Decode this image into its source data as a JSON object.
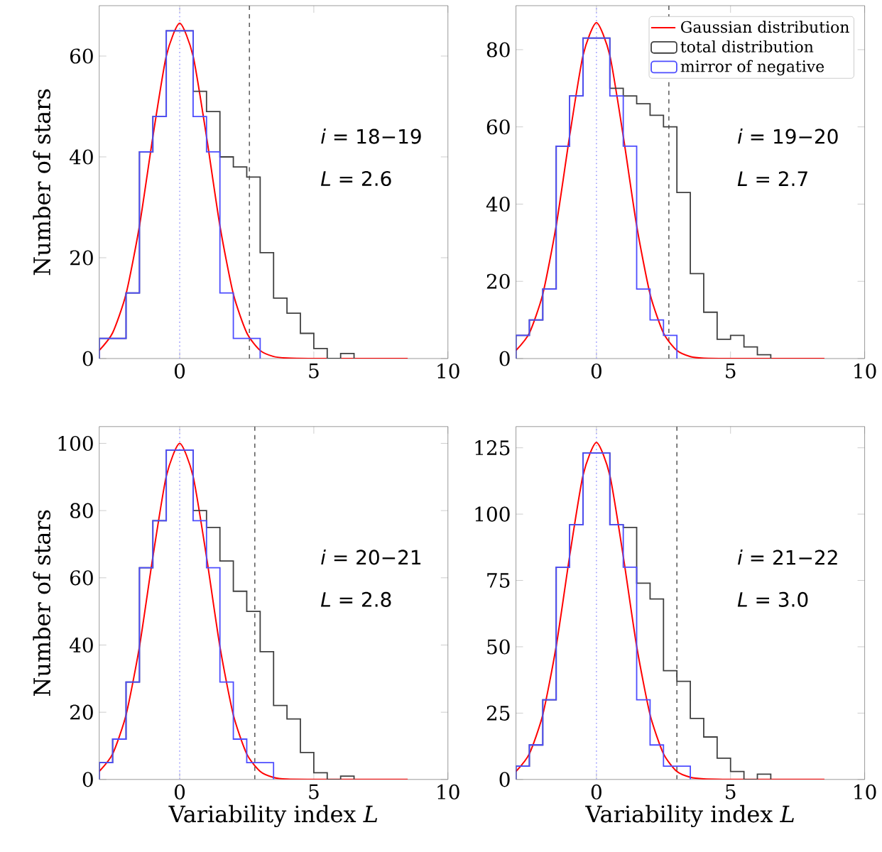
{
  "chart_data": [
    {
      "type": "histogram",
      "ylabel": "Number of stars",
      "xlim": [
        -3,
        10
      ],
      "xticks": [
        0,
        5,
        10
      ],
      "ylim": [
        0,
        70
      ],
      "yticks": [
        0,
        20,
        40,
        60
      ],
      "series": [
        {
          "type": "line",
          "color": "#ff0000",
          "x": [
            -3,
            -2.5,
            -2,
            -1.5,
            -1,
            -0.5,
            0,
            0.5,
            1,
            1.5,
            2,
            2.5,
            3,
            3.5,
            4,
            5,
            6,
            7,
            8,
            8.5
          ],
          "values": [
            1.6,
            5.1,
            12.8,
            26.3,
            44.0,
            60.0,
            66.5,
            60.0,
            44.0,
            26.3,
            12.8,
            5.1,
            1.6,
            0.4,
            0.1,
            0,
            0,
            0,
            0,
            0
          ]
        },
        {
          "color": "#404040",
          "bins": [
            -3,
            -2.5,
            -2,
            -1.5,
            -1,
            -0.5,
            0,
            0.5,
            1,
            1.5,
            2,
            2.5,
            3,
            3.5,
            4,
            4.5,
            5,
            5.5,
            6,
            6.5
          ],
          "values": [
            4,
            4,
            13,
            41,
            48,
            65,
            65,
            53,
            49,
            40,
            38,
            36,
            21,
            12,
            9,
            5,
            2,
            0,
            1
          ]
        },
        {
          "color": "#4d4dff",
          "bins": [
            -3,
            -2.5,
            -2,
            -1.5,
            -1,
            -0.5,
            0,
            0.5,
            1,
            1.5,
            2,
            2.5,
            3
          ],
          "values": [
            4,
            4,
            13,
            41,
            48,
            65,
            65,
            48,
            41,
            13,
            4,
            4
          ]
        }
      ],
      "ref_lines": [
        {
          "axis": "x",
          "value": 0,
          "color": "#9f9fff",
          "line_style": "dotted"
        },
        {
          "axis": "x",
          "value": 2.6,
          "color": "#606060",
          "line_style": "dashed"
        }
      ],
      "annotations": [
        "*i* = 18−19",
        "*L* = 2.6"
      ]
    },
    {
      "type": "histogram",
      "xlim": [
        -3,
        10
      ],
      "xticks": [
        0,
        5,
        10
      ],
      "ylim": [
        0,
        91.4
      ],
      "yticks": [
        0,
        20,
        40,
        60,
        80
      ],
      "legend": "top right",
      "series": [
        {
          "type": "line",
          "name": "Gaussian distribution",
          "color": "#ff0000",
          "x": [
            -3,
            -2.5,
            -2,
            -1.5,
            -1,
            -0.5,
            0,
            0.5,
            1,
            1.5,
            2,
            2.5,
            3,
            3.5,
            4,
            5,
            6,
            7,
            8,
            8.5
          ],
          "values": [
            2.1,
            6.6,
            16.7,
            34.4,
            57.6,
            78.5,
            87,
            78.5,
            57.6,
            34.4,
            16.7,
            6.6,
            2.1,
            0.5,
            0.1,
            0,
            0,
            0,
            0,
            0
          ]
        },
        {
          "name": "total distribution",
          "color": "#404040",
          "bins": [
            -3,
            -2.5,
            -2,
            -1.5,
            -1,
            -0.5,
            0,
            0.5,
            1,
            1.5,
            2,
            2.5,
            3,
            3.5,
            4,
            4.5,
            5,
            5.5,
            6,
            6.5
          ],
          "values": [
            6,
            10,
            18,
            55,
            68,
            83,
            83,
            70,
            68,
            66,
            63,
            60,
            43,
            22,
            12,
            5,
            6,
            3,
            1
          ]
        },
        {
          "name": "mirror of negative",
          "color": "#4d4dff",
          "bins": [
            -3,
            -2.5,
            -2,
            -1.5,
            -1,
            -0.5,
            0,
            0.5,
            1,
            1.5,
            2,
            2.5,
            3
          ],
          "values": [
            6,
            10,
            18,
            55,
            68,
            83,
            83,
            68,
            55,
            18,
            10,
            6
          ]
        }
      ],
      "ref_lines": [
        {
          "axis": "x",
          "value": 0,
          "color": "#9f9fff",
          "line_style": "dotted"
        },
        {
          "axis": "x",
          "value": 2.7,
          "color": "#606060",
          "line_style": "dashed"
        }
      ],
      "annotations": [
        "*i* = 19−20",
        "*L* = 2.7"
      ]
    },
    {
      "type": "histogram",
      "xlabel": "Variability index *L*",
      "ylabel": "Number of stars",
      "xlim": [
        -3,
        10
      ],
      "xticks": [
        0,
        5,
        10
      ],
      "ylim": [
        0,
        105
      ],
      "yticks": [
        0,
        20,
        40,
        60,
        80,
        100
      ],
      "series": [
        {
          "type": "line",
          "color": "#ff0000",
          "x": [
            -3,
            -2.5,
            -2,
            -1.5,
            -1,
            -0.5,
            0,
            0.5,
            1,
            1.5,
            2,
            2.5,
            3,
            3.5,
            4,
            5,
            6,
            7,
            8,
            8.5
          ],
          "values": [
            2.4,
            7.6,
            19.2,
            39.5,
            66.2,
            90.2,
            100,
            90.2,
            66.2,
            39.5,
            19.2,
            7.6,
            2.4,
            0.6,
            0.1,
            0,
            0,
            0,
            0,
            0
          ]
        },
        {
          "color": "#404040",
          "bins": [
            -3,
            -2.5,
            -2,
            -1.5,
            -1,
            -0.5,
            0,
            0.5,
            1,
            1.5,
            2,
            2.5,
            3,
            3.5,
            4,
            4.5,
            5,
            5.5,
            6,
            6.5
          ],
          "values": [
            5,
            12,
            29,
            63,
            77,
            98,
            98,
            80,
            75,
            65,
            56,
            50,
            38,
            22,
            18,
            8,
            2,
            0,
            1
          ]
        },
        {
          "color": "#4d4dff",
          "bins": [
            -3,
            -2.5,
            -2,
            -1.5,
            -1,
            -0.5,
            0,
            0.5,
            1,
            1.5,
            2,
            2.5,
            3,
            3.5
          ],
          "values": [
            5,
            12,
            29,
            63,
            77,
            98,
            98,
            77,
            63,
            29,
            12,
            5,
            5
          ]
        }
      ],
      "ref_lines": [
        {
          "axis": "x",
          "value": 0,
          "color": "#9f9fff",
          "line_style": "dotted"
        },
        {
          "axis": "x",
          "value": 2.8,
          "color": "#606060",
          "line_style": "dashed"
        }
      ],
      "annotations": [
        "*i* = 20−21",
        "*L* = 2.8"
      ]
    },
    {
      "type": "histogram",
      "xlabel": "Variability index *L*",
      "xlim": [
        -3,
        10
      ],
      "xticks": [
        0,
        5,
        10
      ],
      "ylim": [
        0,
        133
      ],
      "yticks": [
        0,
        25,
        50,
        75,
        100,
        125
      ],
      "series": [
        {
          "type": "line",
          "color": "#ff0000",
          "x": [
            -3,
            -2.5,
            -2,
            -1.5,
            -1,
            -0.5,
            0,
            0.5,
            1,
            1.5,
            2,
            2.5,
            3,
            3.5,
            4,
            5,
            6,
            7,
            8,
            8.5
          ],
          "values": [
            3.0,
            9.7,
            24.4,
            50.2,
            84.1,
            114.6,
            127,
            114.6,
            84.1,
            50.2,
            24.4,
            9.7,
            3.0,
            0.8,
            0.2,
            0,
            0,
            0,
            0,
            0
          ]
        },
        {
          "color": "#404040",
          "bins": [
            -3,
            -2.5,
            -2,
            -1.5,
            -1,
            -0.5,
            0,
            0.5,
            1,
            1.5,
            2,
            2.5,
            3,
            3.5,
            4,
            4.5,
            5,
            5.5,
            6,
            6.5
          ],
          "values": [
            5,
            13,
            30,
            80,
            96,
            123,
            123,
            96,
            95,
            74,
            68,
            41,
            37,
            23,
            16,
            8,
            3,
            0,
            2
          ]
        },
        {
          "color": "#4d4dff",
          "bins": [
            -3,
            -2.5,
            -2,
            -1.5,
            -1,
            -0.5,
            0,
            0.5,
            1,
            1.5,
            2,
            2.5,
            3,
            3.5
          ],
          "values": [
            5,
            13,
            30,
            80,
            96,
            123,
            123,
            96,
            80,
            30,
            13,
            5,
            5
          ]
        }
      ],
      "ref_lines": [
        {
          "axis": "x",
          "value": 0,
          "color": "#9f9fff",
          "line_style": "dotted"
        },
        {
          "axis": "x",
          "value": 3.0,
          "color": "#606060",
          "line_style": "dashed"
        }
      ],
      "annotations": [
        "*i* = 21−22",
        "*L* = 3.0"
      ]
    }
  ]
}
